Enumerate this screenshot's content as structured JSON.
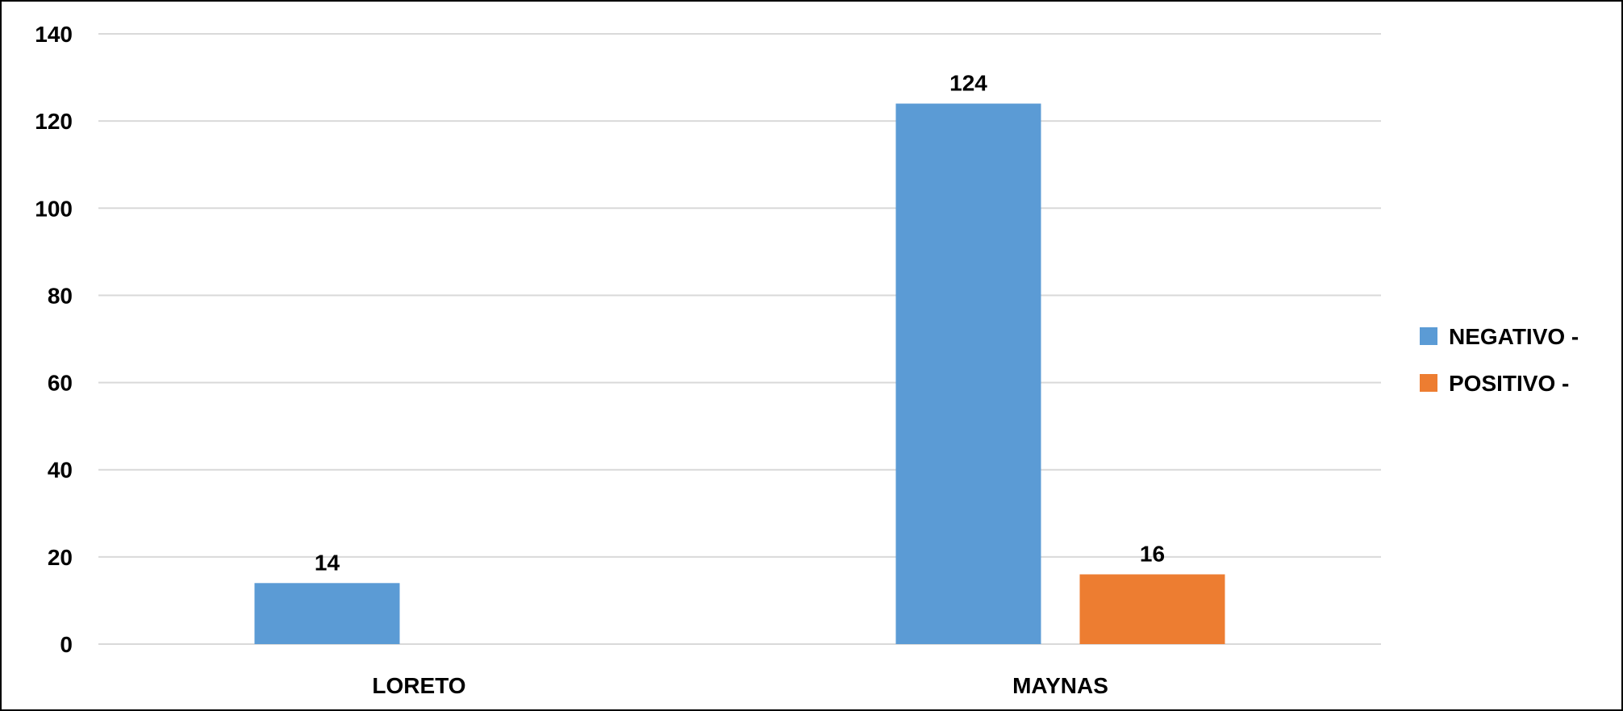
{
  "chart_data": {
    "type": "bar",
    "categories": [
      "LORETO",
      "MAYNAS"
    ],
    "series": [
      {
        "name": "NEGATIVO -",
        "values": [
          14,
          124
        ],
        "color": "#5b9bd5"
      },
      {
        "name": "POSITIVO -",
        "values": [
          null,
          16
        ],
        "color": "#ed7d31"
      }
    ],
    "ylim": [
      0,
      140
    ],
    "yticks": [
      0,
      20,
      40,
      60,
      80,
      100,
      120,
      140
    ],
    "grid": true,
    "legend_position": "right"
  }
}
